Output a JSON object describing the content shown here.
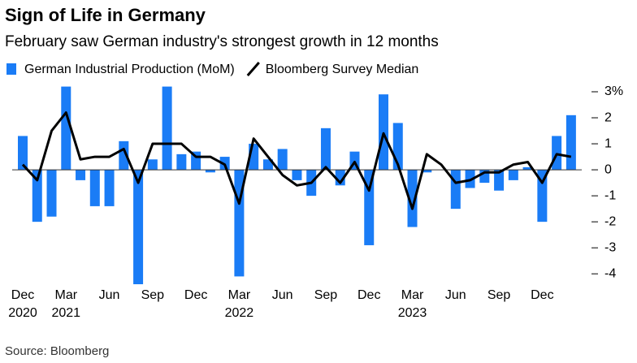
{
  "chart_data": {
    "type": "bar_line",
    "title": "Sign of Life in Germany",
    "subtitle": "February saw German industry's strongest growth in 12 months",
    "source": "Source: Bloomberg",
    "categories": [
      "Dec",
      null,
      null,
      "Mar",
      null,
      null,
      "Jun",
      null,
      null,
      "Sep",
      null,
      null,
      "Dec",
      null,
      null,
      "Mar",
      null,
      null,
      "Jun",
      null,
      null,
      "Sep",
      null,
      null,
      "Dec",
      null,
      null,
      "Mar",
      null,
      null,
      "Jun",
      null,
      null,
      "Sep",
      null,
      null,
      "Dec",
      null,
      null
    ],
    "years": [
      "2020",
      null,
      null,
      "2021",
      null,
      null,
      null,
      null,
      null,
      null,
      null,
      null,
      null,
      null,
      null,
      "2022",
      null,
      null,
      null,
      null,
      null,
      null,
      null,
      null,
      null,
      null,
      null,
      "2023",
      null,
      null,
      null,
      null,
      null,
      null,
      null,
      null,
      null,
      null,
      null
    ],
    "series": [
      {
        "name": "German Industrial Production (MoM)",
        "type": "bar",
        "color": "#1a7cf6",
        "values": [
          1.3,
          -2.0,
          -1.8,
          3.2,
          -0.4,
          -1.4,
          -1.4,
          1.1,
          -4.4,
          0.4,
          3.2,
          0.6,
          0.7,
          -0.1,
          0.5,
          -4.1,
          1.0,
          0.4,
          0.8,
          -0.4,
          -1.0,
          1.6,
          -0.6,
          0.7,
          -2.9,
          2.9,
          1.8,
          -2.2,
          -0.1,
          0.0,
          -1.5,
          -0.7,
          -0.5,
          -0.8,
          -0.4,
          0.1,
          -2.0,
          1.3,
          2.1
        ]
      },
      {
        "name": "Bloomberg Survey Median",
        "type": "line",
        "color": "#000000",
        "values": [
          0.2,
          -0.4,
          1.5,
          2.2,
          0.4,
          0.5,
          0.5,
          0.8,
          -0.5,
          1.0,
          1.0,
          1.0,
          0.5,
          0.5,
          0.2,
          -1.3,
          1.2,
          0.5,
          -0.2,
          -0.6,
          -0.5,
          0.1,
          -0.5,
          0.3,
          -0.8,
          1.4,
          0.2,
          -1.5,
          0.6,
          0.2,
          -0.5,
          -0.4,
          -0.1,
          -0.1,
          0.2,
          0.3,
          -0.5,
          0.6,
          0.5
        ]
      }
    ],
    "ylim": [
      -4.4,
      3.25
    ],
    "yticks": [
      {
        "value": 3,
        "label": "3%"
      },
      2,
      1,
      0,
      -1,
      -2,
      -3,
      -4
    ]
  }
}
